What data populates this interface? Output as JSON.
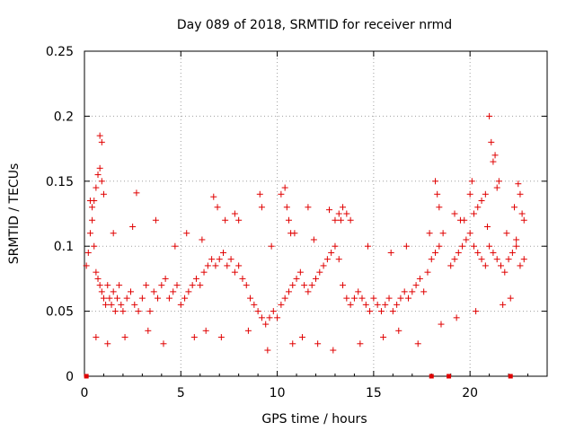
{
  "chart_data": {
    "type": "scatter",
    "title": "Day 089 of 2018, SRMTID for receiver nrmd",
    "xlabel": "GPS time / hours",
    "ylabel": "SRMTID / TECUs",
    "xlim": [
      0,
      24
    ],
    "ylim": [
      0,
      0.25
    ],
    "xticks": [
      0,
      5,
      10,
      15,
      20
    ],
    "yticks": [
      0,
      0.05,
      0.1,
      0.15,
      0.2,
      0.25
    ],
    "ytick_labels": [
      "0",
      "0.05",
      "0.1",
      "0.15",
      "0.2",
      "0.25"
    ],
    "grid": true,
    "marker": "+",
    "color": "#e00000",
    "series": [
      {
        "name": "SRMTID",
        "x": [
          0.1,
          0.2,
          0.3,
          0.4,
          0.5,
          0.6,
          0.7,
          0.8,
          0.9,
          1.0,
          1.1,
          1.2,
          1.3,
          1.4,
          1.5,
          1.6,
          1.7,
          1.8,
          1.9,
          2.0,
          2.2,
          2.4,
          2.6,
          2.8,
          3.0,
          3.2,
          3.4,
          3.6,
          3.8,
          4.0,
          4.2,
          4.4,
          4.6,
          4.8,
          5.0,
          5.2,
          5.4,
          5.6,
          5.8,
          6.0,
          6.2,
          6.4,
          6.6,
          6.8,
          7.0,
          7.2,
          7.4,
          7.6,
          7.8,
          8.0,
          8.2,
          8.4,
          8.6,
          8.8,
          9.0,
          9.2,
          9.4,
          9.6,
          9.8,
          10.0,
          10.2,
          10.4,
          10.6,
          10.8,
          11.0,
          11.2,
          11.4,
          11.6,
          11.8,
          12.0,
          12.2,
          12.4,
          12.6,
          12.8,
          13.0,
          13.2,
          13.4,
          13.6,
          13.8,
          14.0,
          14.2,
          14.4,
          14.6,
          14.8,
          15.0,
          15.2,
          15.4,
          15.6,
          15.8,
          16.0,
          16.2,
          16.4,
          16.6,
          16.8,
          17.0,
          17.2,
          17.4,
          17.6,
          17.8,
          18.0,
          18.2,
          18.4,
          18.6,
          19.0,
          19.2,
          19.4,
          19.6,
          19.8,
          20.0,
          20.2,
          20.4,
          20.6,
          20.8,
          21.0,
          21.2,
          21.4,
          21.6,
          21.8,
          22.0,
          22.2,
          22.4,
          22.6,
          22.8,
          0.5,
          0.6,
          0.7,
          0.8,
          0.9,
          1.0,
          0.9,
          0.8,
          0.3,
          0.4,
          2.7,
          6.7,
          6.9,
          7.8,
          8.0,
          9.1,
          9.2,
          10.2,
          10.4,
          10.5,
          10.6,
          10.7,
          11.6,
          12.7,
          13.0,
          13.2,
          13.4,
          13.6,
          13.8,
          18.2,
          18.3,
          18.4,
          19.2,
          19.5,
          20.0,
          20.1,
          20.2,
          20.4,
          20.6,
          20.8,
          21.0,
          21.1,
          21.2,
          21.3,
          21.4,
          21.5,
          22.3,
          22.5,
          22.6,
          22.7,
          22.8,
          0.6,
          1.2,
          2.1,
          3.3,
          4.1,
          5.7,
          6.3,
          7.1,
          8.5,
          9.5,
          10.8,
          11.3,
          12.1,
          12.9,
          14.3,
          15.5,
          16.3,
          17.3,
          18.5,
          19.3,
          20.3,
          21.7,
          22.1,
          1.5,
          2.5,
          3.7,
          4.7,
          5.3,
          6.1,
          7.3,
          9.7,
          10.9,
          11.9,
          13.3,
          14.7,
          15.9,
          16.7,
          17.9,
          19.7,
          20.9,
          21.9,
          22.4
        ],
        "y": [
          0.085,
          0.095,
          0.11,
          0.12,
          0.1,
          0.08,
          0.075,
          0.07,
          0.065,
          0.06,
          0.055,
          0.07,
          0.06,
          0.055,
          0.065,
          0.05,
          0.06,
          0.07,
          0.055,
          0.05,
          0.06,
          0.065,
          0.055,
          0.05,
          0.06,
          0.07,
          0.05,
          0.065,
          0.06,
          0.07,
          0.075,
          0.06,
          0.065,
          0.07,
          0.055,
          0.06,
          0.065,
          0.07,
          0.075,
          0.07,
          0.08,
          0.085,
          0.09,
          0.085,
          0.09,
          0.095,
          0.085,
          0.09,
          0.08,
          0.085,
          0.075,
          0.07,
          0.06,
          0.055,
          0.05,
          0.045,
          0.04,
          0.045,
          0.05,
          0.045,
          0.055,
          0.06,
          0.065,
          0.07,
          0.075,
          0.08,
          0.07,
          0.065,
          0.07,
          0.075,
          0.08,
          0.085,
          0.09,
          0.095,
          0.1,
          0.09,
          0.07,
          0.06,
          0.055,
          0.06,
          0.065,
          0.06,
          0.055,
          0.05,
          0.06,
          0.055,
          0.05,
          0.055,
          0.06,
          0.05,
          0.055,
          0.06,
          0.065,
          0.06,
          0.065,
          0.07,
          0.075,
          0.065,
          0.08,
          0.09,
          0.095,
          0.1,
          0.11,
          0.085,
          0.09,
          0.095,
          0.1,
          0.105,
          0.11,
          0.1,
          0.095,
          0.09,
          0.085,
          0.1,
          0.095,
          0.09,
          0.085,
          0.08,
          0.09,
          0.095,
          0.1,
          0.085,
          0.09,
          0.135,
          0.145,
          0.155,
          0.16,
          0.15,
          0.14,
          0.18,
          0.185,
          0.135,
          0.13,
          0.141,
          0.138,
          0.13,
          0.125,
          0.12,
          0.14,
          0.13,
          0.14,
          0.145,
          0.13,
          0.12,
          0.11,
          0.13,
          0.128,
          0.12,
          0.125,
          0.13,
          0.125,
          0.12,
          0.15,
          0.14,
          0.13,
          0.125,
          0.12,
          0.14,
          0.15,
          0.125,
          0.13,
          0.135,
          0.14,
          0.2,
          0.18,
          0.165,
          0.17,
          0.145,
          0.15,
          0.13,
          0.148,
          0.14,
          0.125,
          0.12,
          0.03,
          0.025,
          0.03,
          0.035,
          0.025,
          0.03,
          0.035,
          0.03,
          0.035,
          0.02,
          0.025,
          0.03,
          0.025,
          0.02,
          0.025,
          0.03,
          0.035,
          0.025,
          0.04,
          0.045,
          0.05,
          0.055,
          0.06,
          0.11,
          0.115,
          0.12,
          0.1,
          0.11,
          0.105,
          0.12,
          0.1,
          0.11,
          0.105,
          0.12,
          0.1,
          0.095,
          0.1,
          0.11,
          0.12,
          0.115,
          0.11,
          0.105
        ]
      }
    ],
    "zero_points_x": [
      0.1,
      18.0,
      18.9,
      22.1
    ]
  }
}
